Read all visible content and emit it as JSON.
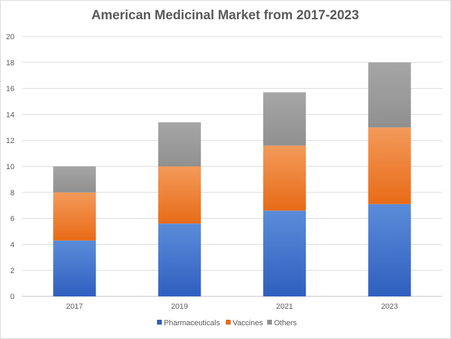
{
  "chart_data": {
    "type": "bar",
    "stacked": true,
    "title": "American Medicinal Market from 2017-2023",
    "xlabel": "",
    "ylabel": "",
    "categories": [
      "2017",
      "2019",
      "2021",
      "2023"
    ],
    "series": [
      {
        "name": "Pharmaceuticals",
        "values": [
          4.3,
          5.6,
          6.6,
          7.1
        ],
        "color_top": "#5B8CD9",
        "color_bottom": "#2F5FBF"
      },
      {
        "name": "Vaccines",
        "values": [
          3.7,
          4.4,
          5.0,
          5.9
        ],
        "color_top": "#F39A5A",
        "color_bottom": "#E86B17"
      },
      {
        "name": "Others",
        "values": [
          2.0,
          3.4,
          4.1,
          5.0
        ],
        "color_top": "#A6A6A6",
        "color_bottom": "#909090"
      }
    ],
    "ylim": [
      0,
      20
    ],
    "yticks": [
      "0",
      "2",
      "4",
      "6",
      "8",
      "10",
      "12",
      "14",
      "16",
      "18",
      "20"
    ],
    "grid": true,
    "legend_position": "bottom"
  }
}
